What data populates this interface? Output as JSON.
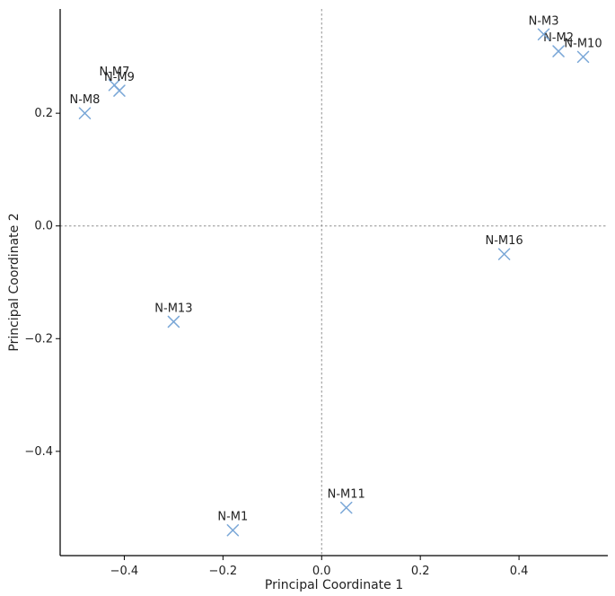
{
  "chart_data": {
    "type": "scatter",
    "title": "",
    "xlabel": "Principal Coordinate 1",
    "ylabel": "Principal Coordinate 2",
    "xlim": [
      -0.53,
      0.58
    ],
    "ylim": [
      -0.585,
      0.385
    ],
    "x_ticks": [
      -0.4,
      -0.2,
      0.0,
      0.2,
      0.4
    ],
    "y_ticks": [
      -0.4,
      -0.2,
      0.0,
      0.2
    ],
    "x_tick_labels": [
      "−0.4",
      "−0.2",
      "0.0",
      "0.2",
      "0.4"
    ],
    "y_tick_labels": [
      "−0.4",
      "−0.2",
      "0.0",
      "0.2"
    ],
    "reference_lines": {
      "x0": true,
      "y0": true
    },
    "grid": false,
    "legend": "none",
    "marker": "x",
    "marker_color": "#7aa7d7",
    "points": [
      {
        "label": "N-M1",
        "x": -0.18,
        "y": -0.54
      },
      {
        "label": "N-M2",
        "x": 0.48,
        "y": 0.31
      },
      {
        "label": "N-M3",
        "x": 0.45,
        "y": 0.34
      },
      {
        "label": "N-M7",
        "x": -0.42,
        "y": 0.25
      },
      {
        "label": "N-M8",
        "x": -0.48,
        "y": 0.2
      },
      {
        "label": "N-M9",
        "x": -0.41,
        "y": 0.24
      },
      {
        "label": "N-M10",
        "x": 0.53,
        "y": 0.3
      },
      {
        "label": "N-M11",
        "x": 0.05,
        "y": -0.5
      },
      {
        "label": "N-M13",
        "x": -0.3,
        "y": -0.17
      },
      {
        "label": "N-M16",
        "x": 0.37,
        "y": -0.05
      }
    ]
  }
}
